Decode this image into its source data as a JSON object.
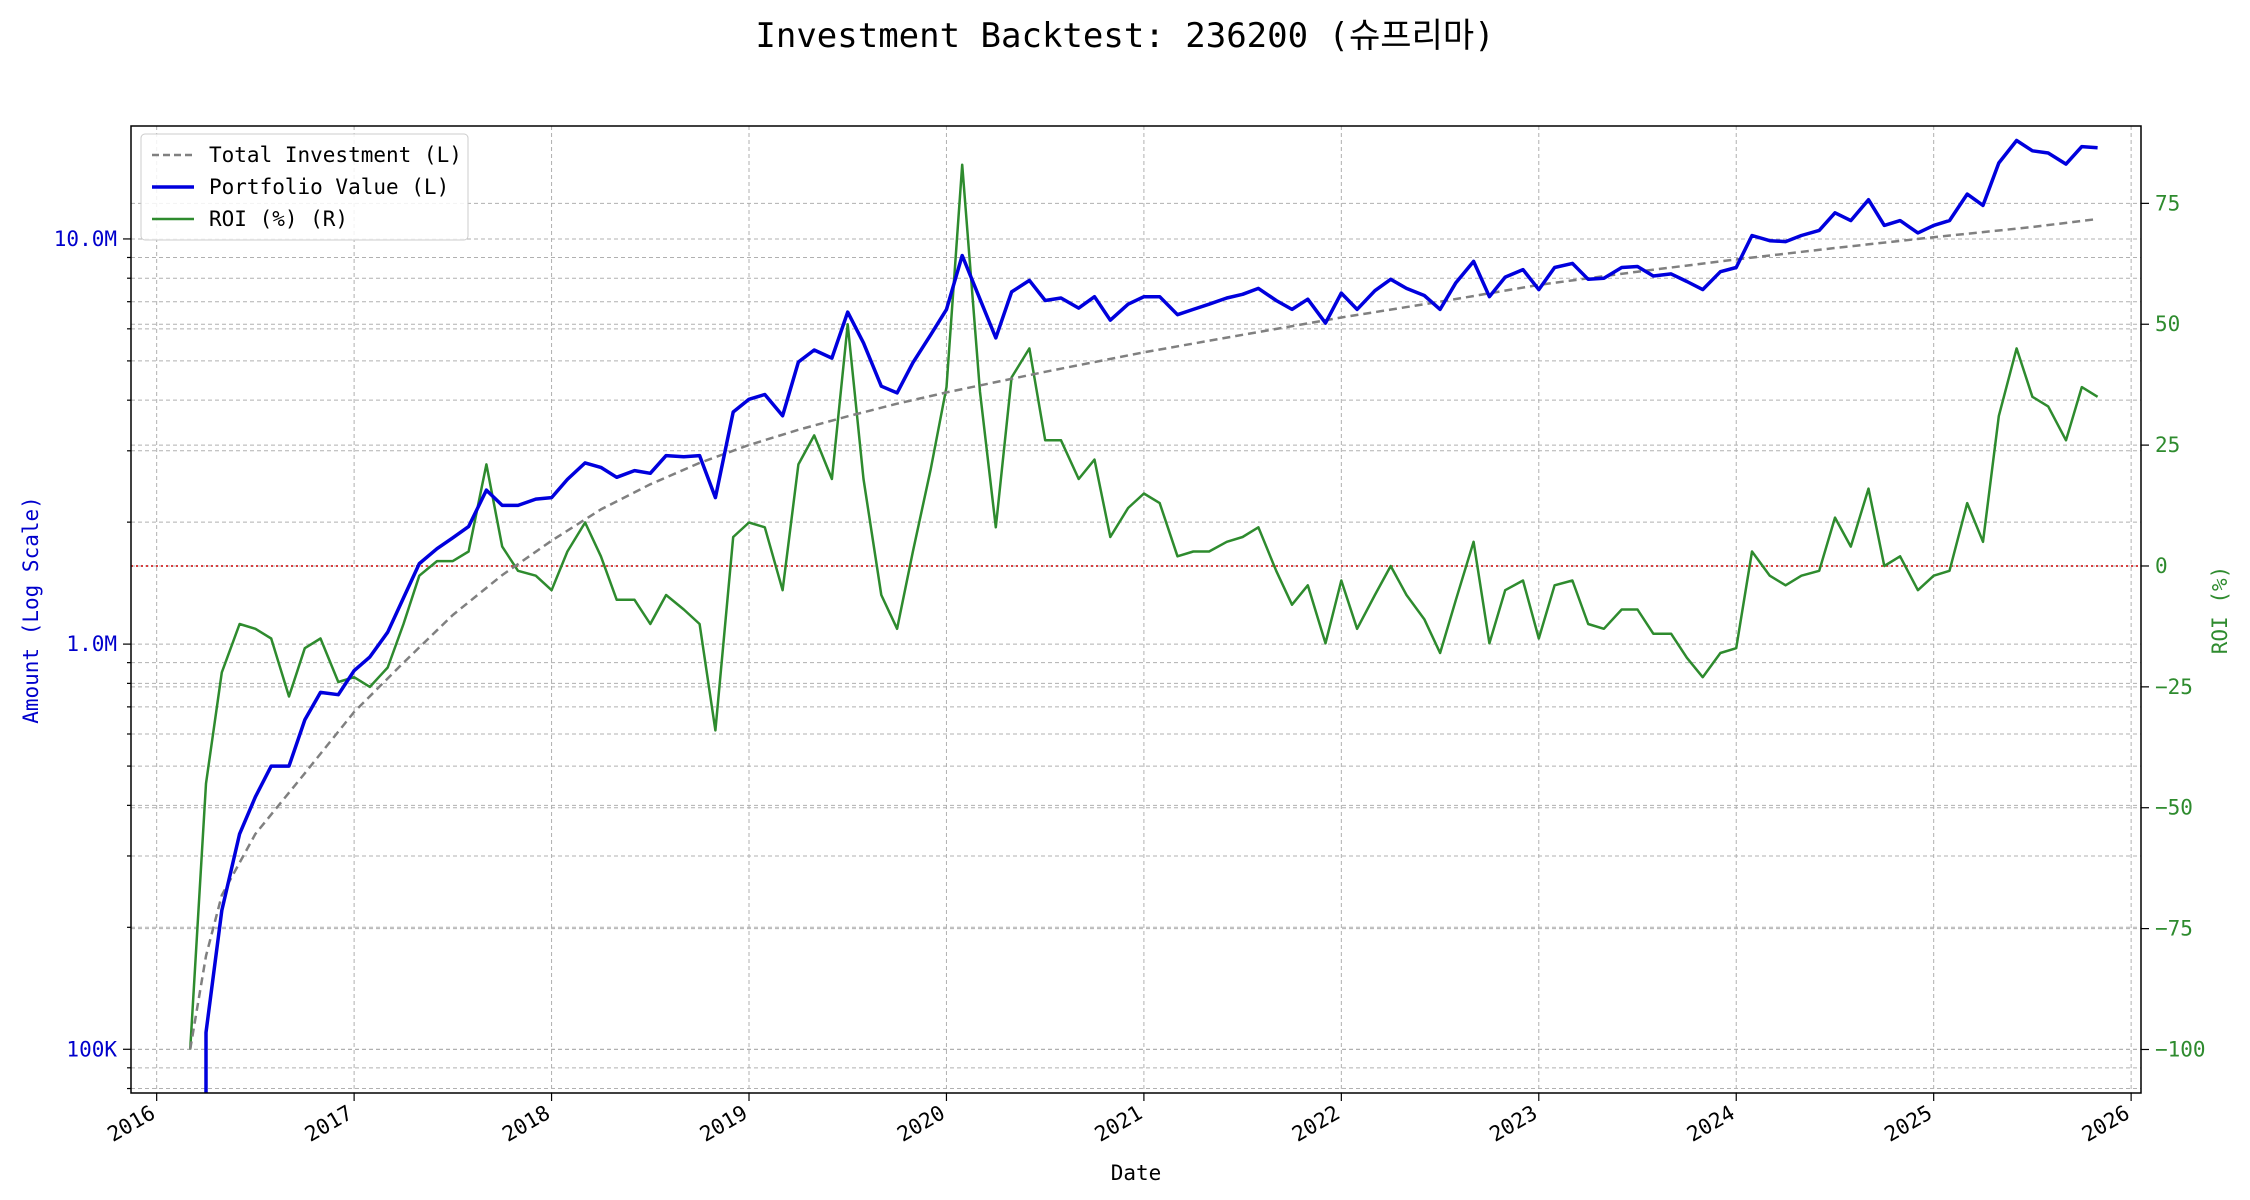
{
  "chart_data": {
    "type": "line",
    "title": "Investment Backtest: 236200 (슈프리마)",
    "xlabel": "Date",
    "ylabel_left": "Amount (Log Scale)",
    "ylabel_right": "ROI (%)",
    "x_range": [
      2015.87,
      2026.05
    ],
    "yleft_range": [
      78000,
      19000000
    ],
    "yleft_scale": "log",
    "yright_range": [
      -109,
      91
    ],
    "grid": true,
    "legend_position": "top-left",
    "reference_line": {
      "axis": "right",
      "value": 0,
      "color": "#cc0000",
      "style": "dotted"
    },
    "x_ticks": [
      {
        "value": 2016,
        "label": "2016"
      },
      {
        "value": 2017,
        "label": "2017"
      },
      {
        "value": 2018,
        "label": "2018"
      },
      {
        "value": 2019,
        "label": "2019"
      },
      {
        "value": 2020,
        "label": "2020"
      },
      {
        "value": 2021,
        "label": "2021"
      },
      {
        "value": 2022,
        "label": "2022"
      },
      {
        "value": 2023,
        "label": "2023"
      },
      {
        "value": 2024,
        "label": "2024"
      },
      {
        "value": 2025,
        "label": "2025"
      },
      {
        "value": 2026,
        "label": "2026"
      }
    ],
    "yleft_ticks": [
      {
        "value": 100000,
        "label": "100K"
      },
      {
        "value": 1000000,
        "label": "1.0M"
      },
      {
        "value": 10000000,
        "label": "10.0M"
      }
    ],
    "yright_ticks": [
      {
        "value": -100,
        "label": "−100"
      },
      {
        "value": -75,
        "label": "−75"
      },
      {
        "value": -50,
        "label": "−50"
      },
      {
        "value": -25,
        "label": "−25"
      },
      {
        "value": 0,
        "label": "0"
      },
      {
        "value": 25,
        "label": "25"
      },
      {
        "value": 50,
        "label": "50"
      },
      {
        "value": 75,
        "label": "75"
      }
    ],
    "colors": {
      "investment": "#808080",
      "portfolio": "#0000dd",
      "roi": "#2e8b2e",
      "left_axis": "#0000cc",
      "right_axis": "#2e8b2e"
    },
    "series": [
      {
        "name": "Total Investment (L)",
        "axis": "left",
        "style": "dashed",
        "points": [
          [
            2016.17,
            100000
          ],
          [
            2016.25,
            170000
          ],
          [
            2016.33,
            240000
          ],
          [
            2016.5,
            340000
          ],
          [
            2016.75,
            480000
          ],
          [
            2017.0,
            680000
          ],
          [
            2017.25,
            900000
          ],
          [
            2017.5,
            1180000
          ],
          [
            2017.75,
            1480000
          ],
          [
            2018.0,
            1800000
          ],
          [
            2018.25,
            2150000
          ],
          [
            2018.5,
            2480000
          ],
          [
            2018.75,
            2800000
          ],
          [
            2019.0,
            3100000
          ],
          [
            2019.25,
            3380000
          ],
          [
            2019.5,
            3650000
          ],
          [
            2019.75,
            3920000
          ],
          [
            2020.0,
            4180000
          ],
          [
            2020.5,
            4700000
          ],
          [
            2021.0,
            5250000
          ],
          [
            2021.5,
            5800000
          ],
          [
            2022.0,
            6400000
          ],
          [
            2022.5,
            7000000
          ],
          [
            2023.0,
            7700000
          ],
          [
            2023.5,
            8300000
          ],
          [
            2024.0,
            8900000
          ],
          [
            2024.5,
            9500000
          ],
          [
            2025.0,
            10100000
          ],
          [
            2025.5,
            10700000
          ],
          [
            2025.83,
            11200000
          ]
        ]
      },
      {
        "name": "Portfolio Value (L)",
        "axis": "left",
        "style": "solid",
        "points": [
          [
            2016.25,
            60000
          ],
          [
            2016.25,
            110000
          ],
          [
            2016.33,
            220000
          ],
          [
            2016.42,
            340000
          ],
          [
            2016.5,
            420000
          ],
          [
            2016.58,
            500000
          ],
          [
            2016.67,
            500000
          ],
          [
            2016.75,
            650000
          ],
          [
            2016.83,
            760000
          ],
          [
            2016.92,
            750000
          ],
          [
            2017.0,
            860000
          ],
          [
            2017.08,
            930000
          ],
          [
            2017.17,
            1070000
          ],
          [
            2017.25,
            1300000
          ],
          [
            2017.33,
            1580000
          ],
          [
            2017.42,
            1720000
          ],
          [
            2017.5,
            1830000
          ],
          [
            2017.58,
            1950000
          ],
          [
            2017.67,
            2400000
          ],
          [
            2017.75,
            2200000
          ],
          [
            2017.83,
            2200000
          ],
          [
            2017.92,
            2280000
          ],
          [
            2018.0,
            2300000
          ],
          [
            2018.08,
            2550000
          ],
          [
            2018.17,
            2800000
          ],
          [
            2018.25,
            2730000
          ],
          [
            2018.33,
            2580000
          ],
          [
            2018.42,
            2680000
          ],
          [
            2018.5,
            2640000
          ],
          [
            2018.58,
            2920000
          ],
          [
            2018.67,
            2900000
          ],
          [
            2018.75,
            2920000
          ],
          [
            2018.83,
            2300000
          ],
          [
            2018.92,
            3740000
          ],
          [
            2019.0,
            4020000
          ],
          [
            2019.08,
            4130000
          ],
          [
            2019.17,
            3660000
          ],
          [
            2019.25,
            4970000
          ],
          [
            2019.33,
            5320000
          ],
          [
            2019.42,
            5080000
          ],
          [
            2019.5,
            6600000
          ],
          [
            2019.58,
            5540000
          ],
          [
            2019.67,
            4330000
          ],
          [
            2019.75,
            4170000
          ],
          [
            2019.83,
            4950000
          ],
          [
            2019.92,
            5800000
          ],
          [
            2020.0,
            6700000
          ],
          [
            2020.08,
            9100000
          ],
          [
            2020.17,
            7100000
          ],
          [
            2020.25,
            5700000
          ],
          [
            2020.33,
            7400000
          ],
          [
            2020.42,
            7900000
          ],
          [
            2020.5,
            7050000
          ],
          [
            2020.58,
            7150000
          ],
          [
            2020.67,
            6750000
          ],
          [
            2020.75,
            7200000
          ],
          [
            2020.83,
            6300000
          ],
          [
            2020.92,
            6900000
          ],
          [
            2021.0,
            7200000
          ],
          [
            2021.08,
            7200000
          ],
          [
            2021.17,
            6500000
          ],
          [
            2021.25,
            6700000
          ],
          [
            2021.33,
            6900000
          ],
          [
            2021.42,
            7150000
          ],
          [
            2021.5,
            7300000
          ],
          [
            2021.58,
            7550000
          ],
          [
            2021.67,
            7050000
          ],
          [
            2021.75,
            6700000
          ],
          [
            2021.83,
            7100000
          ],
          [
            2021.92,
            6200000
          ],
          [
            2022.0,
            7350000
          ],
          [
            2022.08,
            6700000
          ],
          [
            2022.17,
            7450000
          ],
          [
            2022.25,
            7950000
          ],
          [
            2022.33,
            7550000
          ],
          [
            2022.42,
            7250000
          ],
          [
            2022.5,
            6700000
          ],
          [
            2022.58,
            7800000
          ],
          [
            2022.67,
            8800000
          ],
          [
            2022.75,
            7200000
          ],
          [
            2022.83,
            8050000
          ],
          [
            2022.92,
            8400000
          ],
          [
            2023.0,
            7500000
          ],
          [
            2023.08,
            8500000
          ],
          [
            2023.17,
            8700000
          ],
          [
            2023.25,
            7950000
          ],
          [
            2023.33,
            8000000
          ],
          [
            2023.42,
            8500000
          ],
          [
            2023.5,
            8550000
          ],
          [
            2023.58,
            8100000
          ],
          [
            2023.67,
            8200000
          ],
          [
            2023.75,
            7850000
          ],
          [
            2023.83,
            7500000
          ],
          [
            2023.92,
            8300000
          ],
          [
            2024.0,
            8500000
          ],
          [
            2024.08,
            10200000
          ],
          [
            2024.17,
            9900000
          ],
          [
            2024.25,
            9850000
          ],
          [
            2024.33,
            10200000
          ],
          [
            2024.42,
            10500000
          ],
          [
            2024.5,
            11600000
          ],
          [
            2024.58,
            11100000
          ],
          [
            2024.67,
            12500000
          ],
          [
            2024.75,
            10800000
          ],
          [
            2024.83,
            11100000
          ],
          [
            2024.92,
            10350000
          ],
          [
            2025.0,
            10800000
          ],
          [
            2025.08,
            11100000
          ],
          [
            2025.17,
            12900000
          ],
          [
            2025.25,
            12100000
          ],
          [
            2025.33,
            15400000
          ],
          [
            2025.42,
            17500000
          ],
          [
            2025.5,
            16500000
          ],
          [
            2025.58,
            16300000
          ],
          [
            2025.67,
            15300000
          ],
          [
            2025.75,
            16900000
          ],
          [
            2025.83,
            16800000
          ]
        ]
      },
      {
        "name": "ROI (%) (R)",
        "axis": "right",
        "style": "solid",
        "points": [
          [
            2016.17,
            -100
          ],
          [
            2016.25,
            -45
          ],
          [
            2016.33,
            -22
          ],
          [
            2016.42,
            -12
          ],
          [
            2016.5,
            -13
          ],
          [
            2016.58,
            -15
          ],
          [
            2016.67,
            -27
          ],
          [
            2016.75,
            -17
          ],
          [
            2016.83,
            -15
          ],
          [
            2016.92,
            -24
          ],
          [
            2017.0,
            -23
          ],
          [
            2017.08,
            -25
          ],
          [
            2017.17,
            -21
          ],
          [
            2017.25,
            -12
          ],
          [
            2017.33,
            -2
          ],
          [
            2017.42,
            1
          ],
          [
            2017.5,
            1
          ],
          [
            2017.58,
            3
          ],
          [
            2017.67,
            21
          ],
          [
            2017.75,
            4
          ],
          [
            2017.83,
            -1
          ],
          [
            2017.92,
            -2
          ],
          [
            2018.0,
            -5
          ],
          [
            2018.08,
            3
          ],
          [
            2018.17,
            9
          ],
          [
            2018.25,
            2
          ],
          [
            2018.33,
            -7
          ],
          [
            2018.42,
            -7
          ],
          [
            2018.5,
            -12
          ],
          [
            2018.58,
            -6
          ],
          [
            2018.67,
            -9
          ],
          [
            2018.75,
            -12
          ],
          [
            2018.83,
            -34
          ],
          [
            2018.92,
            6
          ],
          [
            2019.0,
            9
          ],
          [
            2019.08,
            8
          ],
          [
            2019.17,
            -5
          ],
          [
            2019.25,
            21
          ],
          [
            2019.33,
            27
          ],
          [
            2019.42,
            18
          ],
          [
            2019.5,
            50
          ],
          [
            2019.58,
            18
          ],
          [
            2019.67,
            -6
          ],
          [
            2019.75,
            -13
          ],
          [
            2019.83,
            3
          ],
          [
            2019.92,
            20
          ],
          [
            2020.0,
            37
          ],
          [
            2020.08,
            83
          ],
          [
            2020.17,
            36
          ],
          [
            2020.25,
            8
          ],
          [
            2020.33,
            39
          ],
          [
            2020.42,
            45
          ],
          [
            2020.5,
            26
          ],
          [
            2020.58,
            26
          ],
          [
            2020.67,
            18
          ],
          [
            2020.75,
            22
          ],
          [
            2020.83,
            6
          ],
          [
            2020.92,
            12
          ],
          [
            2021.0,
            15
          ],
          [
            2021.08,
            13
          ],
          [
            2021.17,
            2
          ],
          [
            2021.25,
            3
          ],
          [
            2021.33,
            3
          ],
          [
            2021.42,
            5
          ],
          [
            2021.5,
            6
          ],
          [
            2021.58,
            8
          ],
          [
            2021.67,
            -1
          ],
          [
            2021.75,
            -8
          ],
          [
            2021.83,
            -4
          ],
          [
            2021.92,
            -16
          ],
          [
            2022.0,
            -3
          ],
          [
            2022.08,
            -13
          ],
          [
            2022.17,
            -6
          ],
          [
            2022.25,
            0
          ],
          [
            2022.33,
            -6
          ],
          [
            2022.42,
            -11
          ],
          [
            2022.5,
            -18
          ],
          [
            2022.58,
            -7
          ],
          [
            2022.67,
            5
          ],
          [
            2022.75,
            -16
          ],
          [
            2022.83,
            -5
          ],
          [
            2022.92,
            -3
          ],
          [
            2023.0,
            -15
          ],
          [
            2023.08,
            -4
          ],
          [
            2023.17,
            -3
          ],
          [
            2023.25,
            -12
          ],
          [
            2023.33,
            -13
          ],
          [
            2023.42,
            -9
          ],
          [
            2023.5,
            -9
          ],
          [
            2023.58,
            -14
          ],
          [
            2023.67,
            -14
          ],
          [
            2023.75,
            -19
          ],
          [
            2023.83,
            -23
          ],
          [
            2023.92,
            -18
          ],
          [
            2024.0,
            -17
          ],
          [
            2024.08,
            3
          ],
          [
            2024.17,
            -2
          ],
          [
            2024.25,
            -4
          ],
          [
            2024.33,
            -2
          ],
          [
            2024.42,
            -1
          ],
          [
            2024.5,
            10
          ],
          [
            2024.58,
            4
          ],
          [
            2024.67,
            16
          ],
          [
            2024.75,
            0
          ],
          [
            2024.83,
            2
          ],
          [
            2024.92,
            -5
          ],
          [
            2025.0,
            -2
          ],
          [
            2025.08,
            -1
          ],
          [
            2025.17,
            13
          ],
          [
            2025.25,
            5
          ],
          [
            2025.33,
            31
          ],
          [
            2025.42,
            45
          ],
          [
            2025.5,
            35
          ],
          [
            2025.58,
            33
          ],
          [
            2025.67,
            26
          ],
          [
            2025.75,
            37
          ],
          [
            2025.83,
            35
          ]
        ]
      }
    ]
  }
}
